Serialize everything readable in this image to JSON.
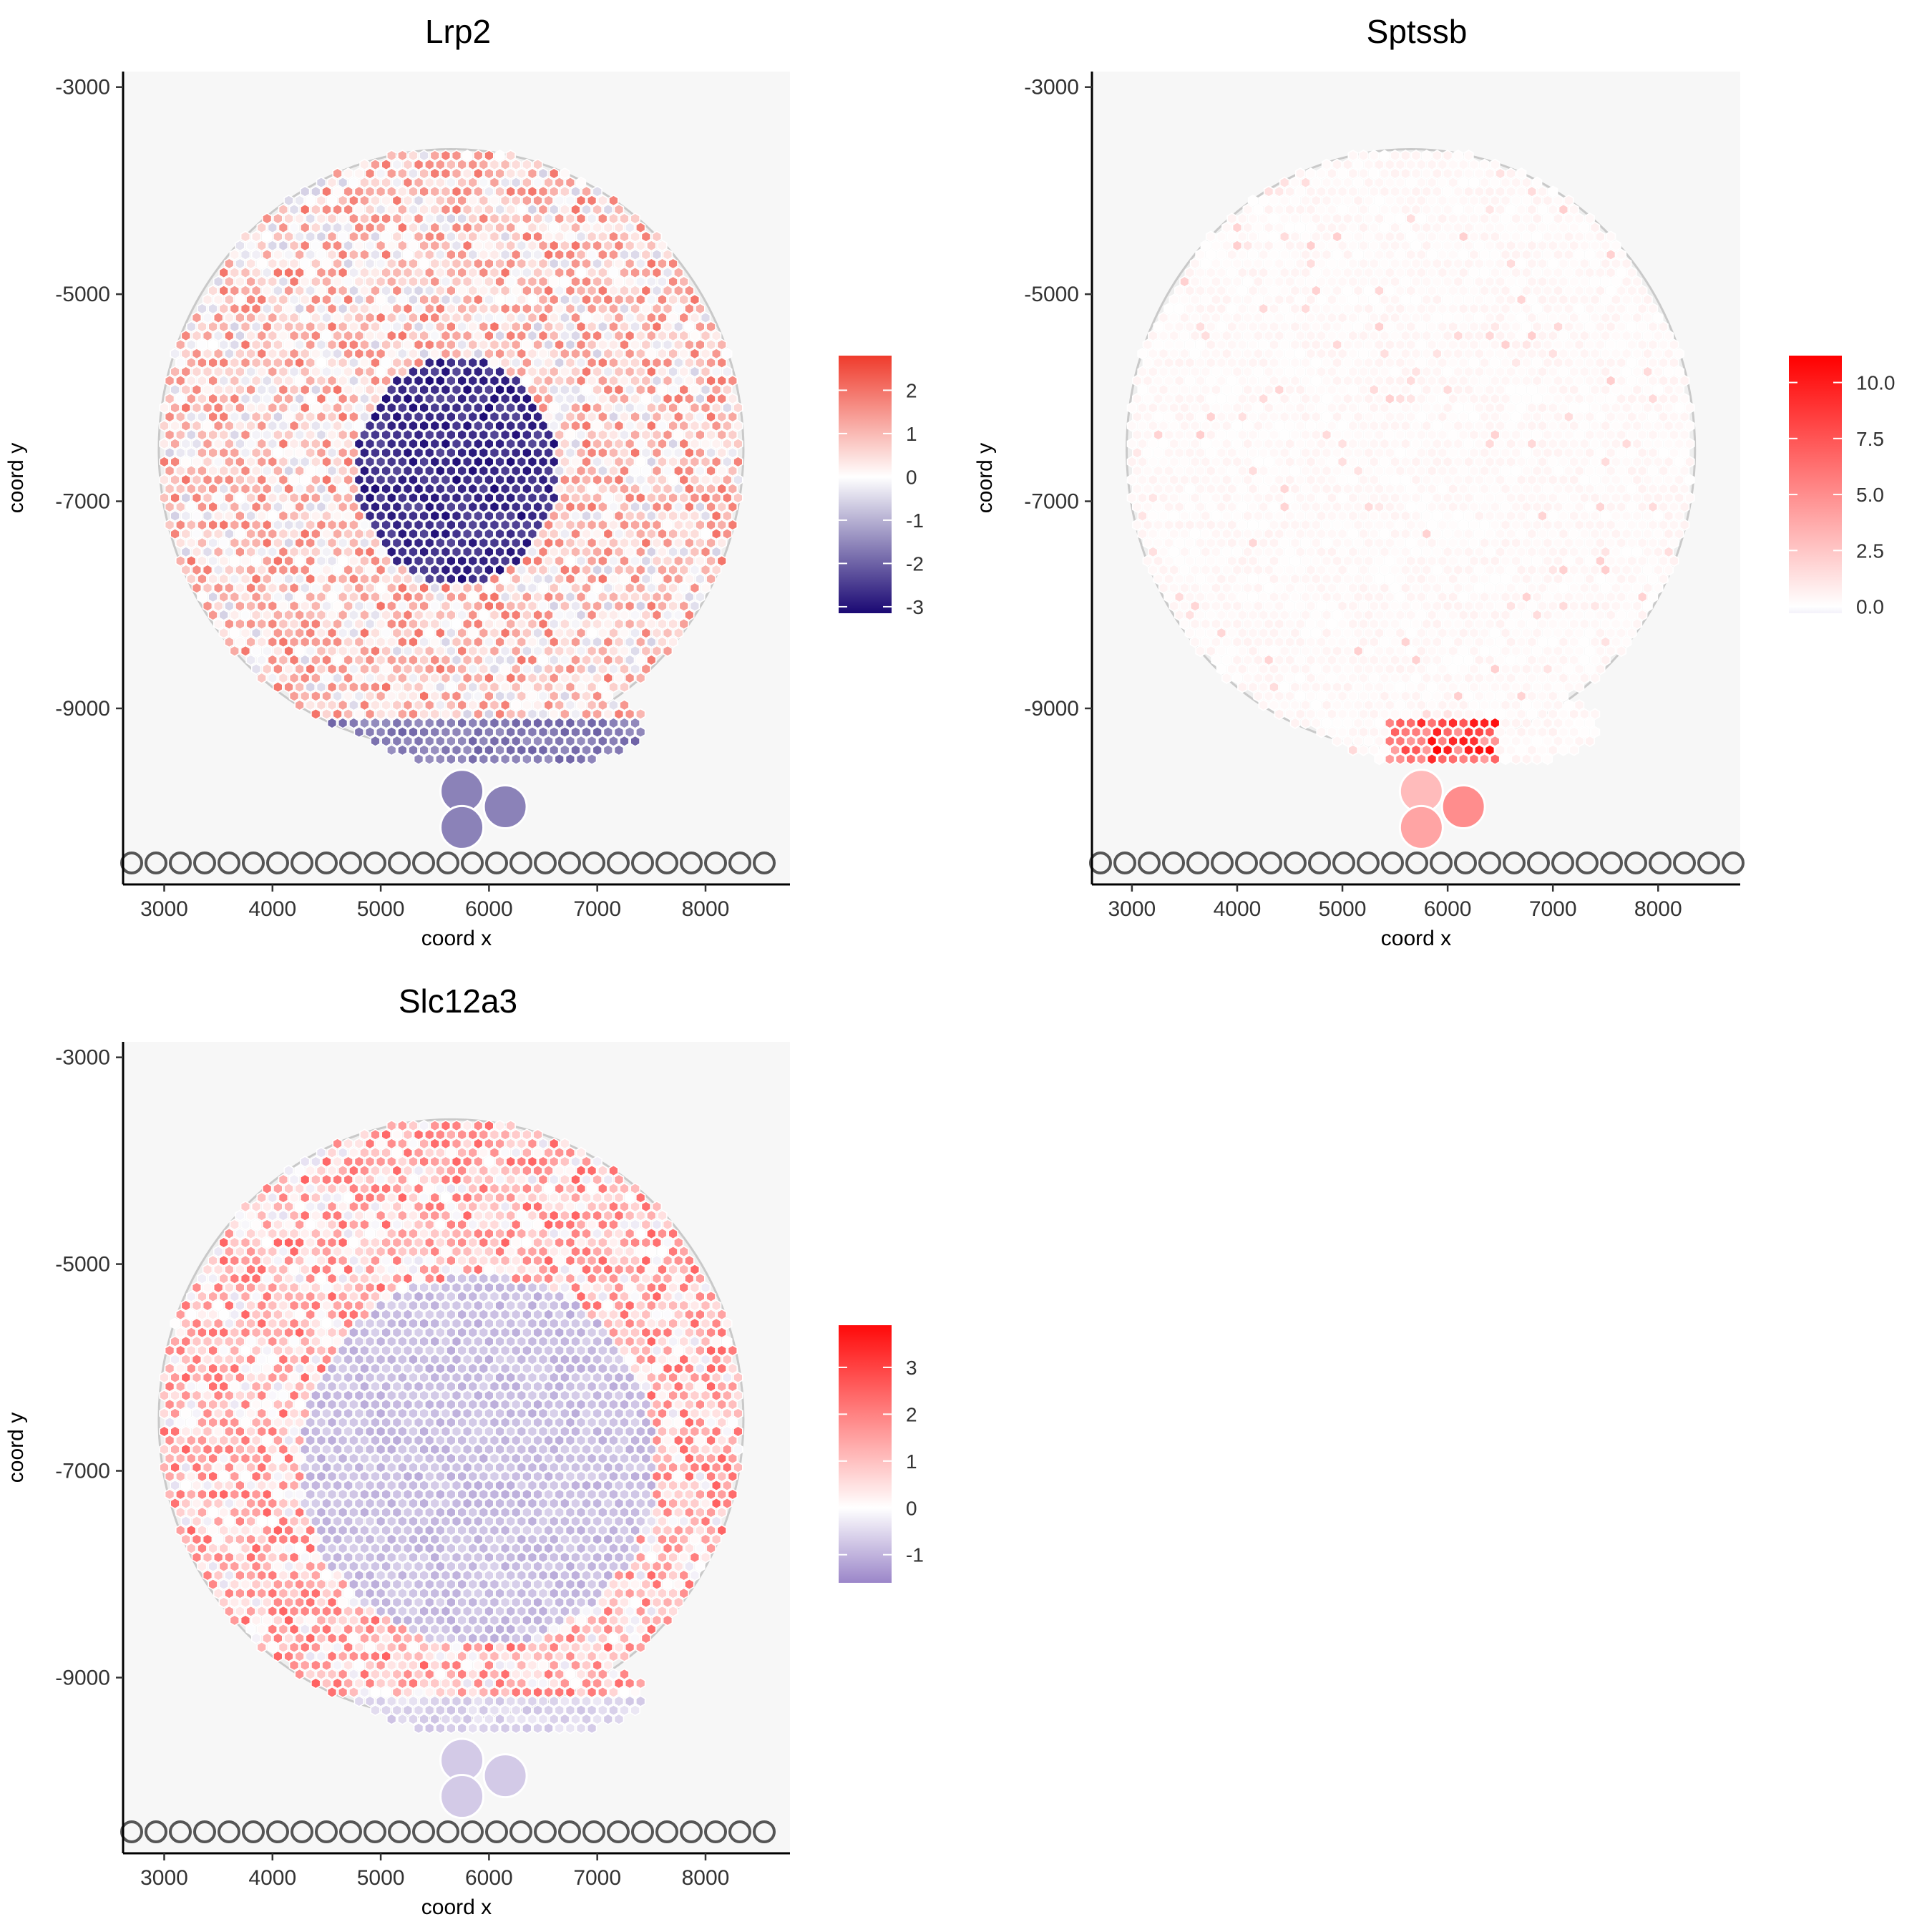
{
  "chart_data": [
    {
      "type": "scatter",
      "title": "Lrp2",
      "xlabel": "coord x",
      "ylabel": "coord y",
      "xlim": [
        2620,
        8780
      ],
      "ylim": [
        -10700,
        -2850
      ],
      "x_ticks": [
        3000,
        4000,
        5000,
        6000,
        7000,
        8000
      ],
      "x_tick_labels": [
        "3000",
        "4000",
        "5000",
        "6000",
        "7000",
        "8000"
      ],
      "y_ticks": [
        -3000,
        -5000,
        -7000,
        -9000
      ],
      "y_tick_labels": [
        "-3000",
        "-5000",
        "-7000",
        "-9000"
      ],
      "grid": false,
      "legend": "right",
      "colorbar": {
        "min": -3.15,
        "max": 2.8,
        "ticks": [
          2,
          1,
          0,
          -1,
          -2,
          -3
        ],
        "tick_labels": [
          "2",
          "1",
          "0",
          "-1",
          "-2",
          "-3"
        ],
        "colors": [
          "#1a0873",
          "#ffffff",
          "#ef3b2c"
        ]
      },
      "pattern": "low-center"
    },
    {
      "type": "scatter",
      "title": "Sptssb",
      "xlabel": "coord x",
      "ylabel": "coord y",
      "xlim": [
        2620,
        8780
      ],
      "ylim": [
        -10700,
        -2850
      ],
      "x_ticks": [
        3000,
        4000,
        5000,
        6000,
        7000,
        8000
      ],
      "x_tick_labels": [
        "3000",
        "4000",
        "5000",
        "6000",
        "7000",
        "8000"
      ],
      "y_ticks": [
        -3000,
        -5000,
        -7000,
        -9000
      ],
      "y_tick_labels": [
        "-3000",
        "-5000",
        "-7000",
        "-9000"
      ],
      "grid": false,
      "legend": "right",
      "colorbar": {
        "min": -0.3,
        "max": 11.2,
        "ticks": [
          10.0,
          7.5,
          5.0,
          2.5,
          0.0
        ],
        "tick_labels": [
          "10.0",
          "7.5",
          "5.0",
          "2.5",
          "0.0"
        ],
        "colors": [
          "#f3f1fa",
          "#ffffff",
          "#ff0000"
        ]
      },
      "pattern": "bottom-hotspot"
    },
    {
      "type": "scatter",
      "title": "Slc12a3",
      "xlabel": "coord x",
      "ylabel": "coord y",
      "xlim": [
        2620,
        8780
      ],
      "ylim": [
        -10700,
        -2850
      ],
      "x_ticks": [
        3000,
        4000,
        5000,
        6000,
        7000,
        8000
      ],
      "x_tick_labels": [
        "3000",
        "4000",
        "5000",
        "6000",
        "7000",
        "8000"
      ],
      "y_ticks": [
        -3000,
        -5000,
        -7000,
        -9000
      ],
      "y_tick_labels": [
        "-3000",
        "-5000",
        "-7000",
        "-9000"
      ],
      "grid": false,
      "legend": "right",
      "colorbar": {
        "min": -1.6,
        "max": 3.9,
        "ticks": [
          3,
          2,
          1,
          0,
          -1
        ],
        "tick_labels": [
          "3",
          "2",
          "1",
          "0",
          "-1"
        ],
        "colors": [
          "#9b86c9",
          "#ffffff",
          "#ff0a0a"
        ]
      },
      "pattern": "low-center-wide"
    }
  ]
}
